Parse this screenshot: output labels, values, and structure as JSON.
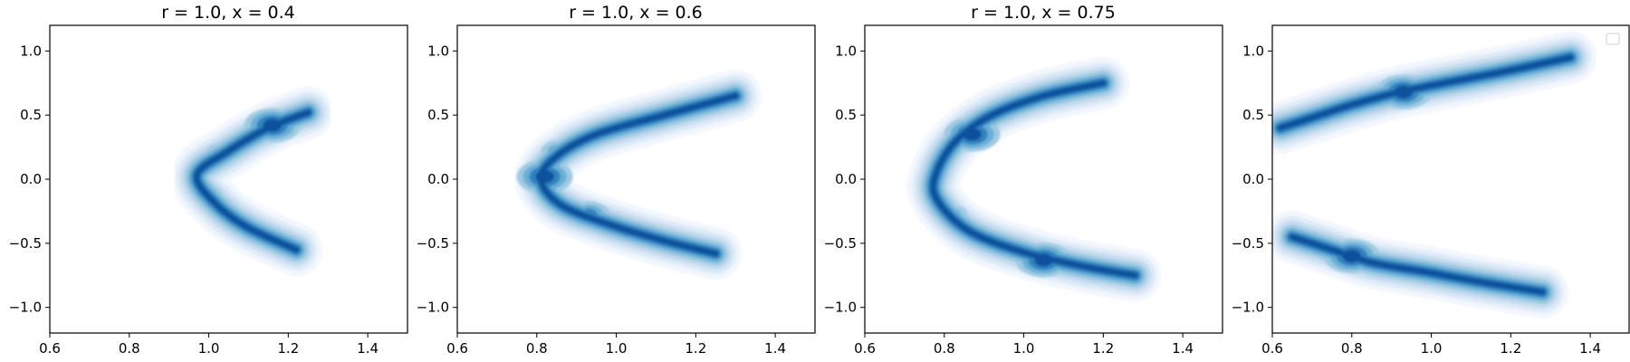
{
  "chart_data": [
    {
      "type": "contour",
      "title": "r = 1.0, x = 0.4",
      "xlim": [
        0.6,
        1.5
      ],
      "ylim": [
        -1.2,
        1.2
      ],
      "xticks": [
        0.6,
        0.8,
        1.0,
        1.2,
        1.4
      ],
      "yticks": [
        -1.0,
        -0.5,
        0.0,
        0.5,
        1.0
      ],
      "xtick_labels": [
        "0.6",
        "0.8",
        "1.0",
        "1.2",
        "1.4"
      ],
      "ytick_labels": [
        "−1.0",
        "−0.5",
        "0.0",
        "0.5",
        "1.0"
      ],
      "colormap": "Blues",
      "legend": false,
      "density_centerline": [
        [
          1.25,
          0.52
        ],
        [
          1.15,
          0.4
        ],
        [
          1.05,
          0.22
        ],
        [
          0.97,
          0.03
        ],
        [
          1.02,
          -0.2
        ],
        [
          1.1,
          -0.38
        ],
        [
          1.22,
          -0.55
        ]
      ],
      "peaks": [
        {
          "x": 1.16,
          "y": 0.42,
          "weight": 1.0
        },
        {
          "x": 1.03,
          "y": 0.2,
          "weight": 0.7
        },
        {
          "x": 0.97,
          "y": 0.0,
          "weight": 0.55
        },
        {
          "x": 1.15,
          "y": -0.43,
          "weight": 0.5
        }
      ]
    },
    {
      "type": "contour",
      "title": "r = 1.0, x = 0.6",
      "xlim": [
        0.6,
        1.5
      ],
      "ylim": [
        -1.2,
        1.2
      ],
      "xticks": [
        0.6,
        0.8,
        1.0,
        1.2,
        1.4
      ],
      "yticks": [
        -1.0,
        -0.5,
        0.0,
        0.5,
        1.0
      ],
      "xtick_labels": [
        "0.6",
        "0.8",
        "1.0",
        "1.2",
        "1.4"
      ],
      "ytick_labels": [
        "−1.0",
        "−0.5",
        "0.0",
        "0.5",
        "1.0"
      ],
      "colormap": "Blues",
      "legend": false,
      "density_centerline": [
        [
          1.3,
          0.65
        ],
        [
          1.12,
          0.5
        ],
        [
          0.95,
          0.35
        ],
        [
          0.85,
          0.18
        ],
        [
          0.81,
          0.0
        ],
        [
          0.86,
          -0.2
        ],
        [
          0.98,
          -0.35
        ],
        [
          1.12,
          -0.48
        ],
        [
          1.25,
          -0.58
        ]
      ],
      "peaks": [
        {
          "x": 0.82,
          "y": 0.02,
          "weight": 1.0
        },
        {
          "x": 0.93,
          "y": -0.28,
          "weight": 0.75
        },
        {
          "x": 0.85,
          "y": 0.22,
          "weight": 0.6
        },
        {
          "x": 1.15,
          "y": 0.52,
          "weight": 0.3
        }
      ]
    },
    {
      "type": "contour",
      "title": "r = 1.0, x = 0.75",
      "xlim": [
        0.6,
        1.5
      ],
      "ylim": [
        -1.2,
        1.2
      ],
      "xticks": [
        0.6,
        0.8,
        1.0,
        1.2,
        1.4
      ],
      "yticks": [
        -1.0,
        -0.5,
        0.0,
        0.5,
        1.0
      ],
      "xtick_labels": [
        "0.6",
        "0.8",
        "1.0",
        "1.2",
        "1.4"
      ],
      "ytick_labels": [
        "−1.0",
        "−0.5",
        "0.0",
        "0.5",
        "1.0"
      ],
      "colormap": "Blues",
      "legend": false,
      "density_centerline": [
        [
          1.2,
          0.75
        ],
        [
          1.05,
          0.65
        ],
        [
          0.92,
          0.5
        ],
        [
          0.83,
          0.3
        ],
        [
          0.78,
          0.05
        ],
        [
          0.78,
          -0.15
        ],
        [
          0.86,
          -0.4
        ],
        [
          1.0,
          -0.57
        ],
        [
          1.15,
          -0.68
        ],
        [
          1.28,
          -0.75
        ]
      ],
      "peaks": [
        {
          "x": 0.87,
          "y": 0.35,
          "weight": 1.0
        },
        {
          "x": 1.05,
          "y": -0.63,
          "weight": 0.95
        },
        {
          "x": 0.82,
          "y": -0.28,
          "weight": 0.6
        },
        {
          "x": 1.02,
          "y": 0.62,
          "weight": 0.55
        }
      ]
    },
    {
      "type": "contour",
      "title": "",
      "xlim": [
        0.6,
        1.5
      ],
      "ylim": [
        -1.2,
        1.2
      ],
      "xticks": [
        0.6,
        0.8,
        1.0,
        1.2,
        1.4
      ],
      "yticks": [
        -1.0,
        -0.5,
        0.0,
        0.5,
        1.0
      ],
      "xtick_labels": [
        "0.6",
        "0.8",
        "1.0",
        "1.2",
        "1.4"
      ],
      "ytick_labels": [
        "−1.0",
        "−0.5",
        "0.0",
        "0.5",
        "1.0"
      ],
      "colormap": "Blues",
      "legend": true,
      "legend_placement": "upper-right",
      "density_centerline": [
        [
          1.35,
          0.95
        ],
        [
          1.2,
          0.85
        ],
        [
          1.05,
          0.76
        ],
        [
          0.92,
          0.68
        ],
        [
          0.8,
          0.58
        ],
        [
          0.7,
          0.48
        ],
        [
          0.62,
          0.4
        ]
      ],
      "density_centerline_lower": [
        [
          0.65,
          -0.45
        ],
        [
          0.75,
          -0.55
        ],
        [
          0.85,
          -0.65
        ],
        [
          0.98,
          -0.72
        ],
        [
          1.12,
          -0.8
        ],
        [
          1.28,
          -0.88
        ]
      ],
      "peaks": [
        {
          "x": 0.93,
          "y": 0.68,
          "weight": 1.0
        },
        {
          "x": 0.8,
          "y": -0.6,
          "weight": 0.95
        },
        {
          "x": 1.1,
          "y": -0.8,
          "weight": 0.55
        },
        {
          "x": 1.15,
          "y": 0.8,
          "weight": 0.4
        }
      ]
    }
  ]
}
